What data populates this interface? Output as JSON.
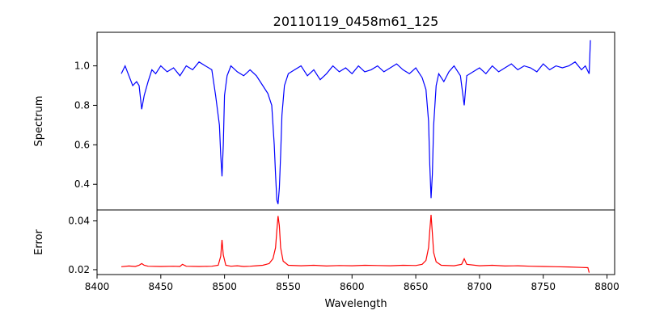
{
  "chart_data": [
    {
      "type": "line",
      "title": "20110119_0458m61_125",
      "ylabel": "Spectrum",
      "xlabel": "",
      "xlim": [
        8400,
        8806
      ],
      "ylim": [
        0.27,
        1.17
      ],
      "yticks": [
        0.4,
        0.6,
        0.8,
        1.0
      ],
      "grid": false,
      "series": [
        {
          "color": "#0000ff",
          "x": [
            8419,
            8422,
            8425,
            8428,
            8431,
            8433,
            8435,
            8437,
            8440,
            8443,
            8446,
            8450,
            8455,
            8460,
            8465,
            8470,
            8475,
            8480,
            8485,
            8490,
            8493,
            8496,
            8497,
            8498,
            8499,
            8500,
            8502,
            8505,
            8510,
            8515,
            8520,
            8525,
            8530,
            8534,
            8537,
            8539,
            8540,
            8541,
            8542,
            8543,
            8544,
            8545,
            8547,
            8550,
            8555,
            8560,
            8565,
            8570,
            8575,
            8580,
            8585,
            8590,
            8595,
            8600,
            8605,
            8610,
            8615,
            8620,
            8625,
            8630,
            8635,
            8640,
            8645,
            8650,
            8655,
            8658,
            8660,
            8661,
            8662,
            8663,
            8664,
            8666,
            8668,
            8672,
            8676,
            8680,
            8685,
            8688,
            8690,
            8695,
            8700,
            8705,
            8710,
            8715,
            8720,
            8725,
            8730,
            8735,
            8740,
            8745,
            8750,
            8755,
            8760,
            8765,
            8770,
            8775,
            8780,
            8783,
            8786,
            8787
          ],
          "values": [
            0.96,
            1.0,
            0.95,
            0.9,
            0.92,
            0.9,
            0.78,
            0.85,
            0.92,
            0.98,
            0.96,
            1.0,
            0.97,
            0.99,
            0.95,
            1.0,
            0.98,
            1.02,
            1.0,
            0.98,
            0.85,
            0.7,
            0.55,
            0.44,
            0.6,
            0.85,
            0.95,
            1.0,
            0.97,
            0.95,
            0.98,
            0.95,
            0.9,
            0.86,
            0.8,
            0.6,
            0.45,
            0.32,
            0.3,
            0.38,
            0.55,
            0.75,
            0.9,
            0.96,
            0.98,
            1.0,
            0.95,
            0.98,
            0.93,
            0.96,
            1.0,
            0.97,
            0.99,
            0.96,
            1.0,
            0.97,
            0.98,
            1.0,
            0.97,
            0.99,
            1.01,
            0.98,
            0.96,
            0.99,
            0.94,
            0.88,
            0.72,
            0.5,
            0.33,
            0.45,
            0.7,
            0.9,
            0.96,
            0.92,
            0.97,
            1.0,
            0.95,
            0.8,
            0.95,
            0.97,
            0.99,
            0.96,
            1.0,
            0.97,
            0.99,
            1.01,
            0.98,
            1.0,
            0.99,
            0.97,
            1.01,
            0.98,
            1.0,
            0.99,
            1.0,
            1.02,
            0.98,
            1.0,
            0.96,
            1.13
          ]
        }
      ]
    },
    {
      "type": "line",
      "title": "",
      "ylabel": "Error",
      "xlabel": "Wavelength",
      "xlim": [
        8400,
        8806
      ],
      "ylim": [
        0.018,
        0.0445
      ],
      "yticks": [
        0.02,
        0.04
      ],
      "xticks": [
        8400,
        8450,
        8500,
        8550,
        8600,
        8650,
        8700,
        8750,
        8800
      ],
      "grid": false,
      "series": [
        {
          "color": "#ff0000",
          "x": [
            8419,
            8425,
            8430,
            8433,
            8435,
            8437,
            8440,
            8450,
            8460,
            8465,
            8467,
            8470,
            8480,
            8490,
            8495,
            8497,
            8498,
            8499,
            8501,
            8505,
            8510,
            8515,
            8520,
            8525,
            8530,
            8535,
            8538,
            8540,
            8541,
            8542,
            8543,
            8544,
            8546,
            8550,
            8560,
            8570,
            8580,
            8590,
            8600,
            8610,
            8620,
            8630,
            8640,
            8650,
            8655,
            8658,
            8660,
            8661,
            8662,
            8663,
            8664,
            8666,
            8670,
            8680,
            8686,
            8688,
            8690,
            8700,
            8710,
            8720,
            8730,
            8740,
            8750,
            8760,
            8770,
            8780,
            8785,
            8786
          ],
          "values": [
            0.0212,
            0.0215,
            0.0213,
            0.0218,
            0.0225,
            0.0218,
            0.0214,
            0.0213,
            0.0214,
            0.0213,
            0.0222,
            0.0214,
            0.0213,
            0.0214,
            0.0218,
            0.0255,
            0.0322,
            0.026,
            0.0218,
            0.0214,
            0.0216,
            0.0213,
            0.0214,
            0.0216,
            0.0218,
            0.0225,
            0.0245,
            0.029,
            0.036,
            0.042,
            0.038,
            0.029,
            0.0235,
            0.0218,
            0.0216,
            0.0218,
            0.0215,
            0.0217,
            0.0216,
            0.0218,
            0.0217,
            0.0216,
            0.0218,
            0.0217,
            0.0222,
            0.0238,
            0.029,
            0.036,
            0.0425,
            0.035,
            0.027,
            0.0232,
            0.0218,
            0.0216,
            0.0222,
            0.0245,
            0.0222,
            0.0216,
            0.0218,
            0.0215,
            0.0216,
            0.0214,
            0.0213,
            0.0212,
            0.0211,
            0.0209,
            0.0208,
            0.0188
          ]
        }
      ]
    }
  ]
}
